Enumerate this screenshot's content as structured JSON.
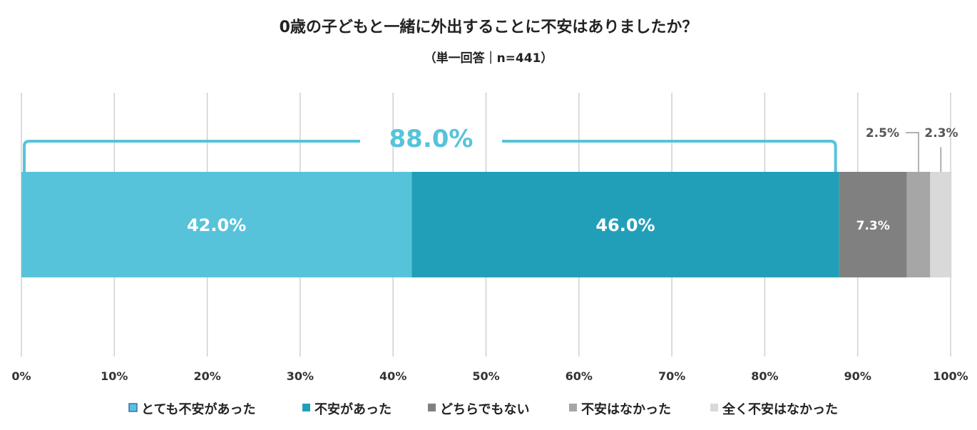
{
  "chart_data": {
    "type": "bar",
    "orientation": "horizontal-stacked",
    "title": "0歳の子どもと一緒に外出することに不安はありましたか？",
    "subtitle": "（単一回答｜n=441）",
    "xlim": [
      0,
      100
    ],
    "x_ticks": [
      "0%",
      "10%",
      "20%",
      "30%",
      "40%",
      "50%",
      "60%",
      "70%",
      "80%",
      "90%",
      "100%"
    ],
    "grid": true,
    "legend_position": "bottom",
    "series": [
      {
        "name": "とても不安があった",
        "value": 42.0,
        "label": "42.0%",
        "color": "#57C3DA"
      },
      {
        "name": "不安があった",
        "value": 46.0,
        "label": "46.0%",
        "color": "#229FB8"
      },
      {
        "name": "どちらでもない",
        "value": 7.3,
        "label": "7.3%",
        "color": "#808080"
      },
      {
        "name": "不安はなかった",
        "value": 2.5,
        "label": "2.5%",
        "color": "#A6A6A6"
      },
      {
        "name": "全く不安はなかった",
        "value": 2.3,
        "label": "2.3%",
        "color": "#D9D9D9"
      }
    ],
    "annotation": {
      "label": "88.0%",
      "from": 0,
      "to": 88.0,
      "color": "#57C3DA"
    }
  }
}
